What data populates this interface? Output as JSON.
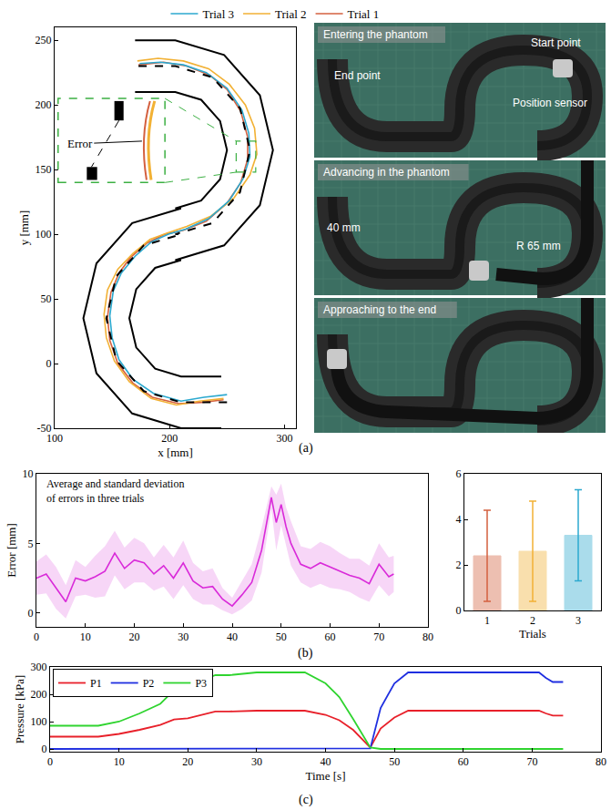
{
  "chart_data": [
    {
      "type": "line",
      "panel_label": "(a)",
      "x_label": "x [mm]",
      "y_label": "y [mm]",
      "xlim": [
        100,
        310
      ],
      "xticks": [
        100,
        200,
        300
      ],
      "ylim": [
        -50,
        260
      ],
      "yticks": [
        -50,
        0,
        50,
        100,
        150,
        200,
        250
      ],
      "legend": "top",
      "grid": false,
      "annotations": [
        "Error"
      ],
      "series": [
        {
          "name": "Trial 1",
          "color": "#d4603f",
          "line_style": "solid",
          "x": [
            247,
            228,
            208,
            185,
            168,
            155,
            148,
            146,
            149,
            156,
            166,
            180,
            196,
            212,
            232,
            250,
            262,
            268,
            268,
            262,
            250,
            235,
            215,
            195,
            173
          ],
          "y": [
            -28,
            -30,
            -31,
            -26,
            -15,
            0,
            18,
            36,
            55,
            70,
            82,
            93,
            100,
            103,
            110,
            124,
            140,
            158,
            175,
            195,
            212,
            223,
            230,
            233,
            231
          ]
        },
        {
          "name": "Trial 2",
          "color": "#f2b134",
          "line_style": "solid",
          "x": [
            247,
            226,
            206,
            184,
            165,
            152,
            145,
            143,
            146,
            155,
            168,
            183,
            198,
            215,
            236,
            256,
            270,
            276,
            274,
            266,
            252,
            234,
            212,
            190,
            172
          ],
          "y": [
            -27,
            -29,
            -32,
            -27,
            -14,
            2,
            20,
            38,
            57,
            73,
            85,
            96,
            101,
            106,
            114,
            128,
            146,
            162,
            182,
            200,
            216,
            228,
            234,
            236,
            234
          ]
        },
        {
          "name": "Trial 3",
          "color": "#2ca9cf",
          "line_style": "solid",
          "x": [
            250,
            230,
            210,
            186,
            168,
            156,
            150,
            148,
            151,
            158,
            170,
            184,
            199,
            214,
            234,
            252,
            264,
            270,
            269,
            263,
            250,
            232,
            212,
            192,
            174
          ],
          "y": [
            -24,
            -26,
            -29,
            -23,
            -12,
            3,
            20,
            37,
            56,
            70,
            83,
            94,
            100,
            104,
            112,
            126,
            143,
            160,
            178,
            196,
            213,
            225,
            231,
            233,
            232
          ]
        },
        {
          "color": "#000000",
          "line_style": "solid",
          "x": [
            245,
            210,
            167.5,
            136.4,
            125,
            136.4,
            167.5,
            210,
            205,
            227.5,
            244,
            250,
            244,
            227.5,
            205,
            170
          ],
          "y": [
            -50,
            -50,
            -38.6,
            -7.5,
            35,
            77.5,
            108.6,
            120,
            120,
            126,
            142.5,
            165,
            187.5,
            204,
            210,
            210
          ]
        },
        {
          "color": "#000000",
          "line_style": "solid",
          "x": [
            245,
            210,
            187.5,
            171,
            165,
            171,
            187.5,
            210,
            205,
            247.5,
            278.6,
            290,
            278.6,
            247.5,
            205,
            170
          ],
          "y": [
            -10,
            -10,
            -4,
            12.5,
            35,
            57.5,
            74,
            80,
            80,
            91.4,
            122.5,
            165,
            207.5,
            238.6,
            250,
            250
          ]
        },
        {
          "color": "#000000",
          "line_style": "dashed",
          "x": [
            250,
            210,
            177.5,
            153.7,
            145,
            153.7,
            177.5,
            210,
            205,
            237.5,
            261.3,
            270,
            261.3,
            237.5,
            205,
            170
          ],
          "y": [
            -30,
            -30,
            -21.3,
            2.5,
            35,
            67.5,
            91.3,
            100,
            100,
            108.7,
            132.5,
            165,
            197.5,
            221.3,
            230,
            230
          ]
        }
      ]
    },
    {
      "type": "line",
      "panel_label": "(b)",
      "title": "Average and standard deviation of errors in three trials",
      "y_label": "Error [mm]",
      "color": "#d92ad9",
      "xlim": [
        0,
        80
      ],
      "xticks": [
        0,
        10,
        20,
        30,
        40,
        50,
        60,
        70,
        80
      ],
      "ylim": [
        -1,
        10
      ],
      "yticks": [
        0,
        5,
        10
      ],
      "grid": false,
      "x": [
        0,
        2,
        4,
        6,
        8,
        10,
        12,
        14,
        16,
        18,
        20,
        22,
        24,
        26,
        28,
        30,
        32,
        34,
        36,
        38,
        40,
        42,
        44,
        46,
        48,
        49,
        50,
        51,
        52,
        54,
        56,
        58,
        60,
        62,
        64,
        66,
        68,
        70,
        72,
        73
      ],
      "values": [
        2.5,
        2.8,
        1.8,
        0.8,
        2.5,
        2.3,
        2.6,
        3.0,
        4.3,
        3.2,
        3.8,
        3.6,
        2.8,
        3.4,
        2.5,
        3.6,
        2.3,
        1.8,
        1.9,
        1.0,
        0.5,
        1.3,
        2.2,
        4.5,
        8.3,
        6.5,
        7.8,
        6.2,
        5.0,
        3.5,
        3.2,
        3.6,
        3.3,
        3.0,
        2.7,
        2.5,
        2.1,
        3.5,
        2.6,
        2.8
      ],
      "std": [
        1.2,
        1.4,
        1.5,
        1.2,
        1.3,
        1.0,
        1.5,
        1.8,
        1.6,
        1.5,
        1.6,
        1.4,
        1.2,
        1.5,
        1.5,
        1.6,
        1.3,
        1.2,
        1.3,
        0.8,
        0.6,
        1.0,
        1.3,
        1.6,
        0.8,
        2.0,
        1.5,
        1.4,
        1.6,
        1.3,
        1.4,
        1.5,
        1.5,
        1.3,
        1.2,
        1.4,
        1.3,
        1.5,
        1.4,
        1.3
      ]
    },
    {
      "type": "bar",
      "x_label": "Trials",
      "categories": [
        "1",
        "2",
        "3"
      ],
      "values": [
        2.4,
        2.6,
        3.3
      ],
      "error": [
        2.0,
        2.2,
        2.0
      ],
      "colors": [
        "#d4603f",
        "#f2b134",
        "#2ca9cf"
      ],
      "ylim": [
        0,
        6
      ],
      "yticks": [
        0,
        2,
        4,
        6
      ],
      "grid": false
    },
    {
      "type": "line",
      "panel_label": "(c)",
      "x_label": "Time [s]",
      "y_label": "Pressure [kPa]",
      "xlim": [
        0,
        80
      ],
      "xticks": [
        0,
        10,
        20,
        30,
        40,
        50,
        60,
        70,
        80
      ],
      "ylim": [
        -10,
        300
      ],
      "yticks": [
        0,
        100,
        200,
        300
      ],
      "legend": "upper left",
      "grid": false,
      "x": [
        0,
        7,
        10,
        13,
        16,
        18,
        20,
        22,
        24,
        26,
        30,
        37,
        40,
        42,
        44,
        46.5,
        48,
        50,
        52,
        60,
        71,
        72,
        73,
        74.5
      ],
      "series": [
        {
          "name": "P1",
          "color": "#e8202a",
          "values": [
            45,
            45,
            55,
            70,
            88,
            108,
            112,
            125,
            137,
            137,
            140,
            140,
            125,
            105,
            70,
            5,
            75,
            115,
            140,
            140,
            140,
            130,
            122,
            122
          ]
        },
        {
          "name": "P2",
          "color": "#1f2fe0",
          "values": [
            0,
            0,
            0,
            0,
            0,
            0,
            0,
            0,
            0,
            0,
            0,
            0,
            0,
            0,
            0,
            2,
            150,
            240,
            280,
            280,
            280,
            260,
            245,
            245
          ]
        },
        {
          "name": "P3",
          "color": "#2fd42f",
          "values": [
            85,
            85,
            100,
            130,
            165,
            215,
            225,
            250,
            270,
            270,
            280,
            280,
            240,
            190,
            110,
            5,
            0,
            0,
            0,
            0,
            0,
            0,
            0,
            0
          ]
        }
      ]
    }
  ],
  "photo_panel": {
    "frames": [
      {
        "caption": "Entering the phantom",
        "labels": [
          "Start point",
          "End point",
          "Position sensor"
        ]
      },
      {
        "caption": "Advancing in the phantom",
        "labels": [
          "40 mm",
          "R 65 mm"
        ]
      },
      {
        "caption": "Approaching to the end"
      }
    ]
  }
}
